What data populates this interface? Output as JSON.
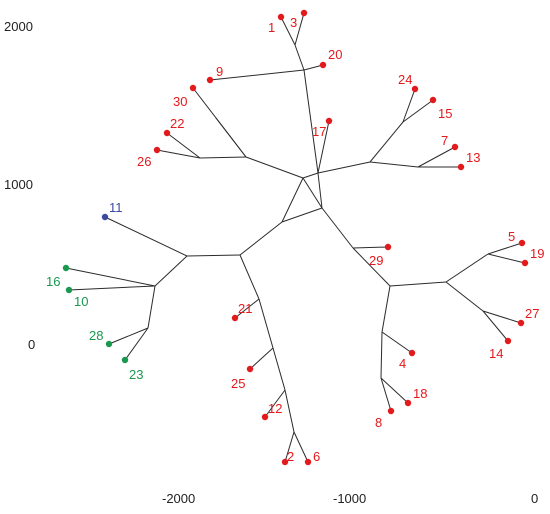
{
  "axes": {
    "x_ticks": [
      "-2000",
      "-1000",
      "0"
    ],
    "y_ticks": [
      "2000",
      "1000",
      "0"
    ]
  },
  "colors": {
    "red": "#e31a1c",
    "green": "#1a9850",
    "blue": "#3b4aa0",
    "edge": "#2b2b2b"
  },
  "tips": [
    {
      "label": "1",
      "color": "red"
    },
    {
      "label": "3",
      "color": "red"
    },
    {
      "label": "20",
      "color": "red"
    },
    {
      "label": "9",
      "color": "red"
    },
    {
      "label": "30",
      "color": "red"
    },
    {
      "label": "22",
      "color": "red"
    },
    {
      "label": "26",
      "color": "red"
    },
    {
      "label": "17",
      "color": "red"
    },
    {
      "label": "24",
      "color": "red"
    },
    {
      "label": "15",
      "color": "red"
    },
    {
      "label": "7",
      "color": "red"
    },
    {
      "label": "13",
      "color": "red"
    },
    {
      "label": "11",
      "color": "blue"
    },
    {
      "label": "16",
      "color": "green"
    },
    {
      "label": "10",
      "color": "green"
    },
    {
      "label": "28",
      "color": "green"
    },
    {
      "label": "23",
      "color": "green"
    },
    {
      "label": "29",
      "color": "red"
    },
    {
      "label": "5",
      "color": "red"
    },
    {
      "label": "19",
      "color": "red"
    },
    {
      "label": "27",
      "color": "red"
    },
    {
      "label": "14",
      "color": "red"
    },
    {
      "label": "21",
      "color": "red"
    },
    {
      "label": "25",
      "color": "red"
    },
    {
      "label": "12",
      "color": "red"
    },
    {
      "label": "2",
      "color": "red"
    },
    {
      "label": "6",
      "color": "red"
    },
    {
      "label": "4",
      "color": "red"
    },
    {
      "label": "18",
      "color": "red"
    },
    {
      "label": "8",
      "color": "red"
    }
  ]
}
